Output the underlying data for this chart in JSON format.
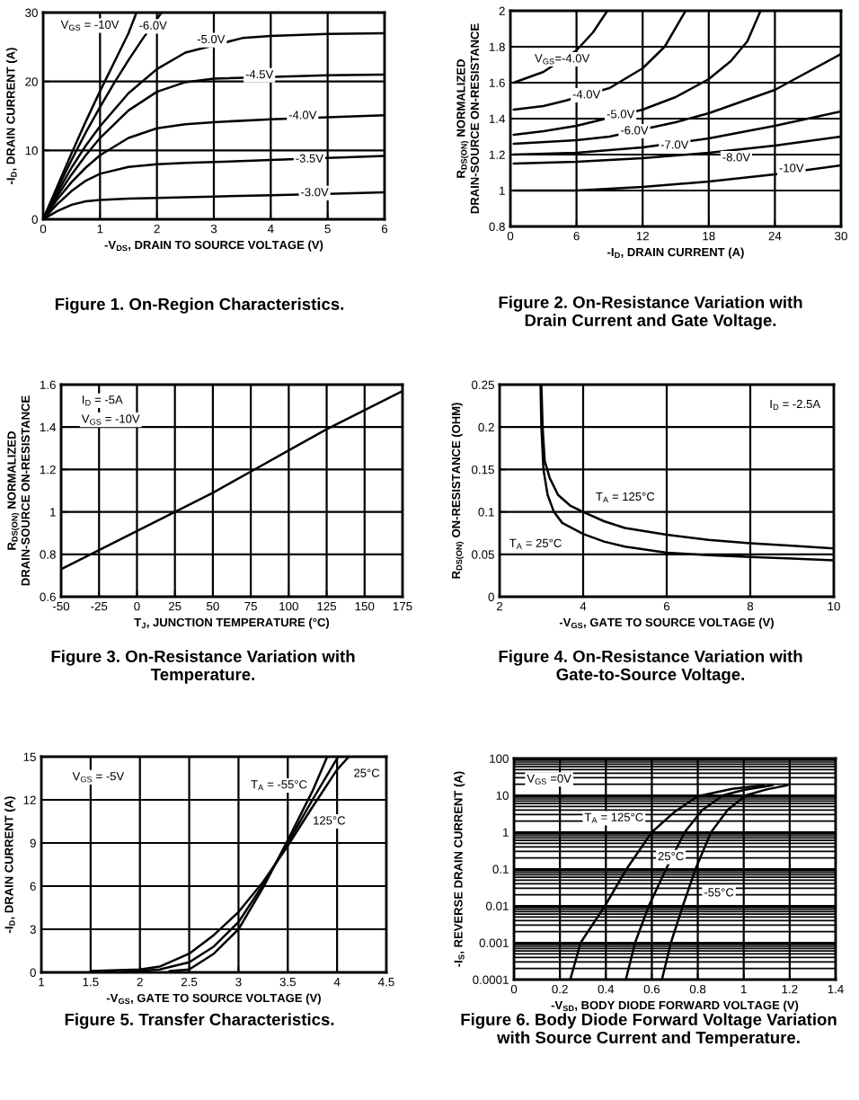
{
  "chart_data": [
    {
      "type": "line",
      "title": "Figure 1. On-Region Characteristics.",
      "xlabel": "-V$_{DS}$, DRAIN TO SOURCE VOLTAGE (V)",
      "ylabel": "-I$_{D}$, DRAIN CURRENT (A)",
      "xlim": [
        0,
        6
      ],
      "ylim": [
        0,
        30
      ],
      "xticks": [
        0,
        1,
        2,
        3,
        4,
        5,
        6
      ],
      "yticks": [
        0,
        10,
        20,
        30
      ],
      "grid": true,
      "series": [
        {
          "color": "#000000",
          "x": [
            0,
            0.25,
            0.5,
            0.75,
            1,
            1.25,
            1.5,
            1.64
          ],
          "values": [
            0,
            4.8,
            9.6,
            14.2,
            18.6,
            22.8,
            27,
            30
          ]
        },
        {
          "color": "#000000",
          "x": [
            0,
            0.25,
            0.5,
            0.75,
            1,
            1.25,
            1.5,
            1.75,
            2.08
          ],
          "values": [
            0,
            4.4,
            8.6,
            12.6,
            16.3,
            19.8,
            23.1,
            26.2,
            30
          ]
        },
        {
          "color": "#000000",
          "x": [
            0,
            0.25,
            0.5,
            0.75,
            1,
            1.5,
            2,
            2.5,
            3.5,
            4,
            5,
            6
          ],
          "values": [
            0,
            3.9,
            7.5,
            10.7,
            13.5,
            18.3,
            21.8,
            24.2,
            26.3,
            26.6,
            26.9,
            27
          ]
        },
        {
          "color": "#000000",
          "x": [
            0,
            0.25,
            0.5,
            0.75,
            1,
            1.5,
            2,
            2.5,
            3,
            5,
            6
          ],
          "values": [
            0,
            3.4,
            6.5,
            9.3,
            11.8,
            15.8,
            18.5,
            19.9,
            20.4,
            20.9,
            21
          ]
        },
        {
          "color": "#000000",
          "x": [
            0,
            0.25,
            0.5,
            0.75,
            1,
            1.5,
            2,
            2.5,
            3,
            4,
            5,
            6
          ],
          "values": [
            0,
            2.9,
            5.4,
            7.5,
            9.3,
            11.8,
            13.2,
            13.8,
            14.1,
            14.5,
            14.8,
            15.1
          ]
        },
        {
          "color": "#000000",
          "x": [
            0,
            0.25,
            0.5,
            0.75,
            1,
            1.5,
            2,
            2.5,
            3,
            4,
            5,
            6
          ],
          "values": [
            0,
            2.2,
            4.1,
            5.6,
            6.6,
            7.6,
            8,
            8.2,
            8.3,
            8.6,
            8.9,
            9.2
          ]
        },
        {
          "color": "#000000",
          "x": [
            0,
            0.25,
            0.5,
            0.75,
            1,
            1.5,
            2,
            2.5,
            3,
            4,
            5,
            6
          ],
          "values": [
            0,
            1.2,
            2.1,
            2.6,
            2.8,
            3,
            3.1,
            3.2,
            3.3,
            3.5,
            3.7,
            3.9
          ]
        }
      ],
      "annotations": [
        "V$_{GS}$ = -10V",
        {
          "text": "-6.0V",
          "x": 1.93,
          "y": 28
        },
        {
          "text": "-5.0V",
          "x": 2.95,
          "y": 26
        },
        {
          "text": "-4.5V",
          "x": 3.8,
          "y": 20.9
        },
        {
          "text": "-4.0V",
          "x": 4.56,
          "y": 15
        },
        {
          "text": "-3.5V",
          "x": 4.68,
          "y": 8.7
        },
        {
          "text": "-3.0V",
          "x": 4.77,
          "y": 3.8
        }
      ]
    },
    {
      "type": "line",
      "title": "Figure 2. On-Resistance Variation with\nDrain Current and Gate Voltage.",
      "xlabel": "-I$_{D}$, DRAIN CURRENT (A)",
      "ylabel": "R$_{DS(ON)}$ NORMALIZED\nDRAIN-SOURCE ON-RESISTANCE",
      "xlim": [
        0,
        30
      ],
      "ylim": [
        0.8,
        2
      ],
      "xticks": [
        0,
        6,
        12,
        18,
        24,
        30
      ],
      "yticks": [
        0.8,
        1,
        1.2,
        1.4,
        1.6,
        1.8,
        2
      ],
      "grid": true,
      "series": [
        {
          "color": "#000000",
          "x": [
            0.3,
            3,
            6,
            7.5,
            8.8
          ],
          "values": [
            1.6,
            1.66,
            1.78,
            1.88,
            2
          ]
        },
        {
          "color": "#000000",
          "x": [
            0.3,
            3,
            5,
            9,
            12,
            14,
            15.9
          ],
          "values": [
            1.45,
            1.47,
            1.5,
            1.57,
            1.68,
            1.8,
            2
          ]
        },
        {
          "color": "#000000",
          "x": [
            0.3,
            3,
            6,
            12,
            15,
            18,
            20,
            21.5,
            22.7
          ],
          "values": [
            1.31,
            1.33,
            1.36,
            1.45,
            1.52,
            1.62,
            1.72,
            1.83,
            2
          ]
        },
        {
          "color": "#000000",
          "x": [
            0.3,
            6,
            9,
            15,
            18,
            24,
            30
          ],
          "values": [
            1.26,
            1.28,
            1.3,
            1.38,
            1.43,
            1.56,
            1.76
          ]
        },
        {
          "color": "#000000",
          "x": [
            0.3,
            6,
            12,
            18,
            24,
            30
          ],
          "values": [
            1.2,
            1.21,
            1.24,
            1.29,
            1.36,
            1.44
          ]
        },
        {
          "color": "#000000",
          "x": [
            0.3,
            6,
            12,
            18,
            24,
            30
          ],
          "values": [
            1.15,
            1.16,
            1.18,
            1.21,
            1.25,
            1.3
          ]
        },
        {
          "color": "#000000",
          "x": [
            0.3,
            6,
            12,
            18,
            24,
            30
          ],
          "values": [
            1,
            1,
            1.02,
            1.05,
            1.09,
            1.14
          ]
        }
      ],
      "annotations": [
        {
          "text": "V$_{GS}$=-4.0V",
          "x": 4.7,
          "y": 1.73
        },
        {
          "text": "-4.0V",
          "x": 6.9,
          "y": 1.53
        },
        {
          "text": "-5.0V",
          "x": 10,
          "y": 1.42
        },
        {
          "text": "-6.0V",
          "x": 11.25,
          "y": 1.33
        },
        {
          "text": "-7.0V",
          "x": 14.9,
          "y": 1.25
        },
        {
          "text": "-8.0V",
          "x": 20.5,
          "y": 1.18
        },
        {
          "text": "-10V",
          "x": 25.5,
          "y": 1.12
        }
      ]
    },
    {
      "type": "line",
      "title": "Figure 3. On-Resistance Variation with\nTemperature.",
      "xlabel": "T$_{J}$, JUNCTION TEMPERATURE (°C)",
      "ylabel": "R$_{DS(ON)}$ NORMALIZED\nDRAIN-SOURCE ON-RESISTANCE",
      "xlim": [
        -50,
        175
      ],
      "ylim": [
        0.6,
        1.6
      ],
      "xticks": [
        -50,
        -25,
        0,
        25,
        50,
        75,
        100,
        125,
        150,
        175
      ],
      "yticks": [
        0.6,
        0.8,
        1,
        1.2,
        1.4,
        1.6
      ],
      "grid": true,
      "series": [
        {
          "color": "#000000",
          "x": [
            -50,
            -25,
            0,
            25,
            50,
            75,
            100,
            125,
            150,
            175
          ],
          "values": [
            0.73,
            0.82,
            0.91,
            1,
            1.09,
            1.19,
            1.29,
            1.39,
            1.48,
            1.57
          ]
        }
      ],
      "annotations": [
        "I$_{D}$ = -5A",
        "V$_{GS}$ = -10V"
      ]
    },
    {
      "type": "line",
      "title": "Figure 4. On-Resistance Variation with\nGate-to-Source Voltage.",
      "xlabel": "-V$_{GS}$, GATE TO SOURCE VOLTAGE (V)",
      "ylabel": "R$_{DS(ON)}$ ON-RESISTANCE (OHM)",
      "xlim": [
        2,
        10
      ],
      "ylim": [
        0,
        0.25
      ],
      "xticks": [
        2,
        4,
        6,
        8,
        10
      ],
      "yticks": [
        0,
        0.05,
        0.1,
        0.15,
        0.2,
        0.25
      ],
      "grid": true,
      "series": [
        {
          "color": "#000000",
          "x": [
            3,
            3.03,
            3.08,
            3.2,
            3.4,
            3.7,
            4,
            4.5,
            5,
            6,
            7,
            8,
            9,
            10
          ],
          "values": [
            0.25,
            0.2,
            0.16,
            0.14,
            0.12,
            0.107,
            0.1,
            0.089,
            0.081,
            0.073,
            0.067,
            0.063,
            0.06,
            0.057
          ]
        },
        {
          "color": "#000000",
          "x": [
            2.98,
            3,
            3.05,
            3.15,
            3.3,
            3.5,
            4,
            4.5,
            5,
            6,
            7,
            8,
            9,
            10
          ],
          "values": [
            0.25,
            0.2,
            0.15,
            0.12,
            0.1,
            0.087,
            0.074,
            0.065,
            0.059,
            0.052,
            0.049,
            0.047,
            0.045,
            0.043
          ]
        }
      ],
      "annotations": [
        "I$_{D}$ = -2.5A",
        "T$_{A}$ = 125°C",
        "T$_{A}$ = 25°C"
      ]
    },
    {
      "type": "line",
      "title": "Figure 5. Transfer Characteristics.",
      "xlabel": "-V$_{GS}$, GATE TO SOURCE VOLTAGE (V)",
      "ylabel": "-I$_{D}$, DRAIN CURRENT (A)",
      "xlim": [
        1,
        4.5
      ],
      "ylim": [
        0,
        15
      ],
      "xticks": [
        1,
        1.5,
        2,
        2.5,
        3,
        3.5,
        4,
        4.5
      ],
      "yticks": [
        0,
        3,
        6,
        9,
        12,
        15
      ],
      "grid": true,
      "series": [
        {
          "color": "#000000",
          "x": [
            1.5,
            2,
            2.2,
            2.5,
            2.75,
            3,
            3.25,
            3.5,
            3.75,
            4,
            4.12
          ],
          "values": [
            0.1,
            0.2,
            0.4,
            1.3,
            2.6,
            4.2,
            6.3,
            8.8,
            11.5,
            14.1,
            15
          ]
        },
        {
          "color": "#000000",
          "x": [
            1.8,
            2.2,
            2.5,
            2.75,
            3,
            3.25,
            3.5,
            3.75,
            4.01
          ],
          "values": [
            0,
            0.2,
            0.7,
            1.8,
            3.5,
            6.1,
            9,
            12,
            15
          ]
        },
        {
          "color": "#000000",
          "x": [
            2.3,
            2.5,
            2.75,
            3,
            3.25,
            3.5,
            3.75,
            3.9
          ],
          "values": [
            0.1,
            0.2,
            1.3,
            3,
            5.9,
            9.2,
            12.6,
            15
          ]
        }
      ],
      "annotations": [
        "V$_{GS}$ = -5V",
        "T$_{A}$ = -55°C",
        {
          "text": "25°C",
          "x": 4.3,
          "y": 13.8
        },
        {
          "text": "125°C",
          "x": 3.92,
          "y": 10.5
        }
      ]
    },
    {
      "type": "line",
      "title": "Figure 6. Body Diode Forward Voltage Variation\nwith Source Current and Temperature.",
      "xlabel": "-V$_{SD}$, BODY DIODE FORWARD VOLTAGE (V)",
      "ylabel": "-I$_{S}$, REVERSE DRAIN CURRENT (A)",
      "log": true,
      "xlim": [
        0,
        1.4
      ],
      "ylim": [
        0.0001,
        100
      ],
      "xticks": [
        0,
        0.2,
        0.4,
        0.6,
        0.8,
        1,
        1.2,
        1.4
      ],
      "yticks": [
        0.0001,
        0.001,
        0.01,
        0.1,
        1,
        10,
        100
      ],
      "grid": true,
      "series": [
        {
          "color": "#000000",
          "x": [
            0.245,
            0.29,
            0.396,
            0.49,
            0.6,
            0.7,
            0.8,
            0.95,
            1.087
          ],
          "values": [
            0.0001,
            0.001,
            0.01,
            0.1,
            1,
            3.6,
            9.5,
            15,
            18.7
          ]
        },
        {
          "color": "#000000",
          "x": [
            0.487,
            0.527,
            0.587,
            0.662,
            0.743,
            0.82,
            0.91,
            1,
            1.126
          ],
          "values": [
            0.0001,
            0.001,
            0.01,
            0.1,
            1,
            4,
            10,
            14,
            18.7
          ]
        },
        {
          "color": "#000000",
          "x": [
            0.644,
            0.683,
            0.735,
            0.79,
            0.858,
            0.93,
            1.009,
            1.1,
            1.19
          ],
          "values": [
            0.0001,
            0.001,
            0.01,
            0.1,
            1,
            4,
            10,
            14.5,
            18.7
          ]
        }
      ],
      "annotations": [
        "V$_{GS}$ =0V",
        "T$_{A}$ = 125°C",
        {
          "text": "25°C",
          "x": 0.683,
          "y": 0.21
        },
        {
          "text": "-55°C",
          "x": 0.892,
          "y": 0.022
        }
      ]
    }
  ]
}
